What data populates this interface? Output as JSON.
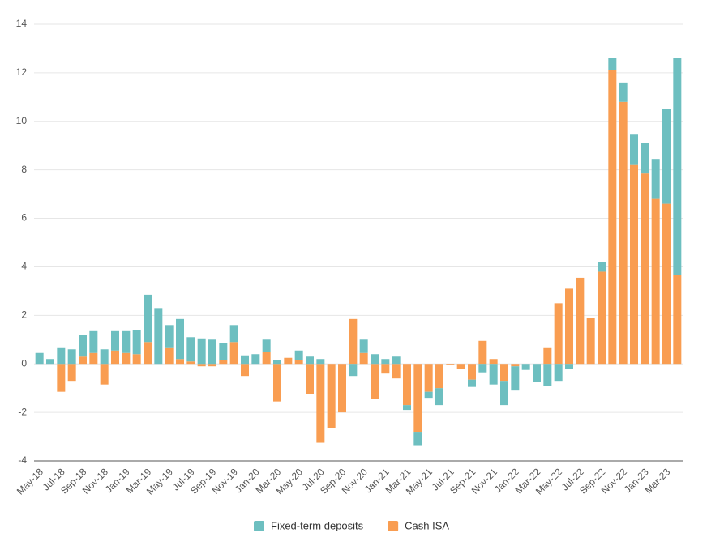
{
  "chart_data": {
    "type": "bar",
    "stacked": true,
    "categories": [
      "May-18",
      null,
      "Jul-18",
      null,
      "Sep-18",
      null,
      "Nov-18",
      null,
      "Jan-19",
      null,
      "Mar-19",
      null,
      "May-19",
      null,
      "Jul-19",
      null,
      "Sep-19",
      null,
      "Nov-19",
      null,
      "Jan-20",
      null,
      "Mar-20",
      null,
      "May-20",
      null,
      "Jul-20",
      null,
      "Sep-20",
      null,
      "Nov-20",
      null,
      "Jan-21",
      null,
      "Mar-21",
      null,
      "May-21",
      null,
      "Jul-21",
      null,
      "Sep-21",
      null,
      "Nov-21",
      null,
      "Jan-22",
      null,
      "Mar-22",
      null,
      "May-22",
      null,
      "Jul-22",
      null,
      "Sep-22",
      null,
      "Nov-22",
      null,
      "Jan-23",
      null,
      "Mar-23",
      null
    ],
    "series": [
      {
        "name": "Cash ISA",
        "color": "#f99d51",
        "values": [
          0,
          0,
          -1.15,
          -0.7,
          0.3,
          0.45,
          -0.85,
          0.55,
          0.45,
          0.4,
          0.9,
          0,
          0.65,
          0.2,
          0.1,
          -0.1,
          -0.1,
          0.15,
          0.9,
          -0.5,
          0,
          0.5,
          -1.55,
          0.25,
          0.15,
          -1.25,
          -3.25,
          -2.65,
          -2.0,
          1.85,
          0.45,
          -1.45,
          -0.4,
          -0.6,
          -1.7,
          -2.8,
          -1.15,
          -1.0,
          -0.05,
          -0.2,
          -0.65,
          0.95,
          0.2,
          -0.7,
          -0.1,
          0,
          0,
          0.65,
          2.5,
          3.1,
          3.55,
          1.9,
          3.8,
          12.1,
          10.8,
          8.2,
          7.85,
          6.8,
          6.6,
          3.65
        ]
      },
      {
        "name": "Fixed-term deposits",
        "color": "#6dbfc0",
        "values": [
          0.45,
          0.2,
          0.65,
          0.6,
          0.9,
          0.9,
          0.6,
          0.8,
          0.9,
          1.0,
          1.95,
          2.3,
          0.95,
          1.65,
          1.0,
          1.05,
          1.0,
          0.7,
          0.7,
          0.35,
          0.4,
          0.5,
          0.15,
          0,
          0.4,
          0.3,
          0.2,
          0,
          0,
          -0.5,
          0.55,
          0.4,
          0.2,
          0.3,
          -0.2,
          -0.55,
          -0.25,
          -0.7,
          0,
          0,
          -0.3,
          -0.35,
          -0.85,
          -1.0,
          -1.0,
          -0.25,
          -0.75,
          -0.9,
          -0.7,
          -0.2,
          0,
          0,
          0.4,
          0.5,
          0.8,
          1.25,
          1.25,
          1.65,
          3.9,
          8.95
        ]
      }
    ],
    "ylim": [
      -4,
      14
    ],
    "yticks": [
      -4,
      -2,
      0,
      2,
      4,
      6,
      8,
      10,
      12,
      14
    ],
    "grid": true
  }
}
